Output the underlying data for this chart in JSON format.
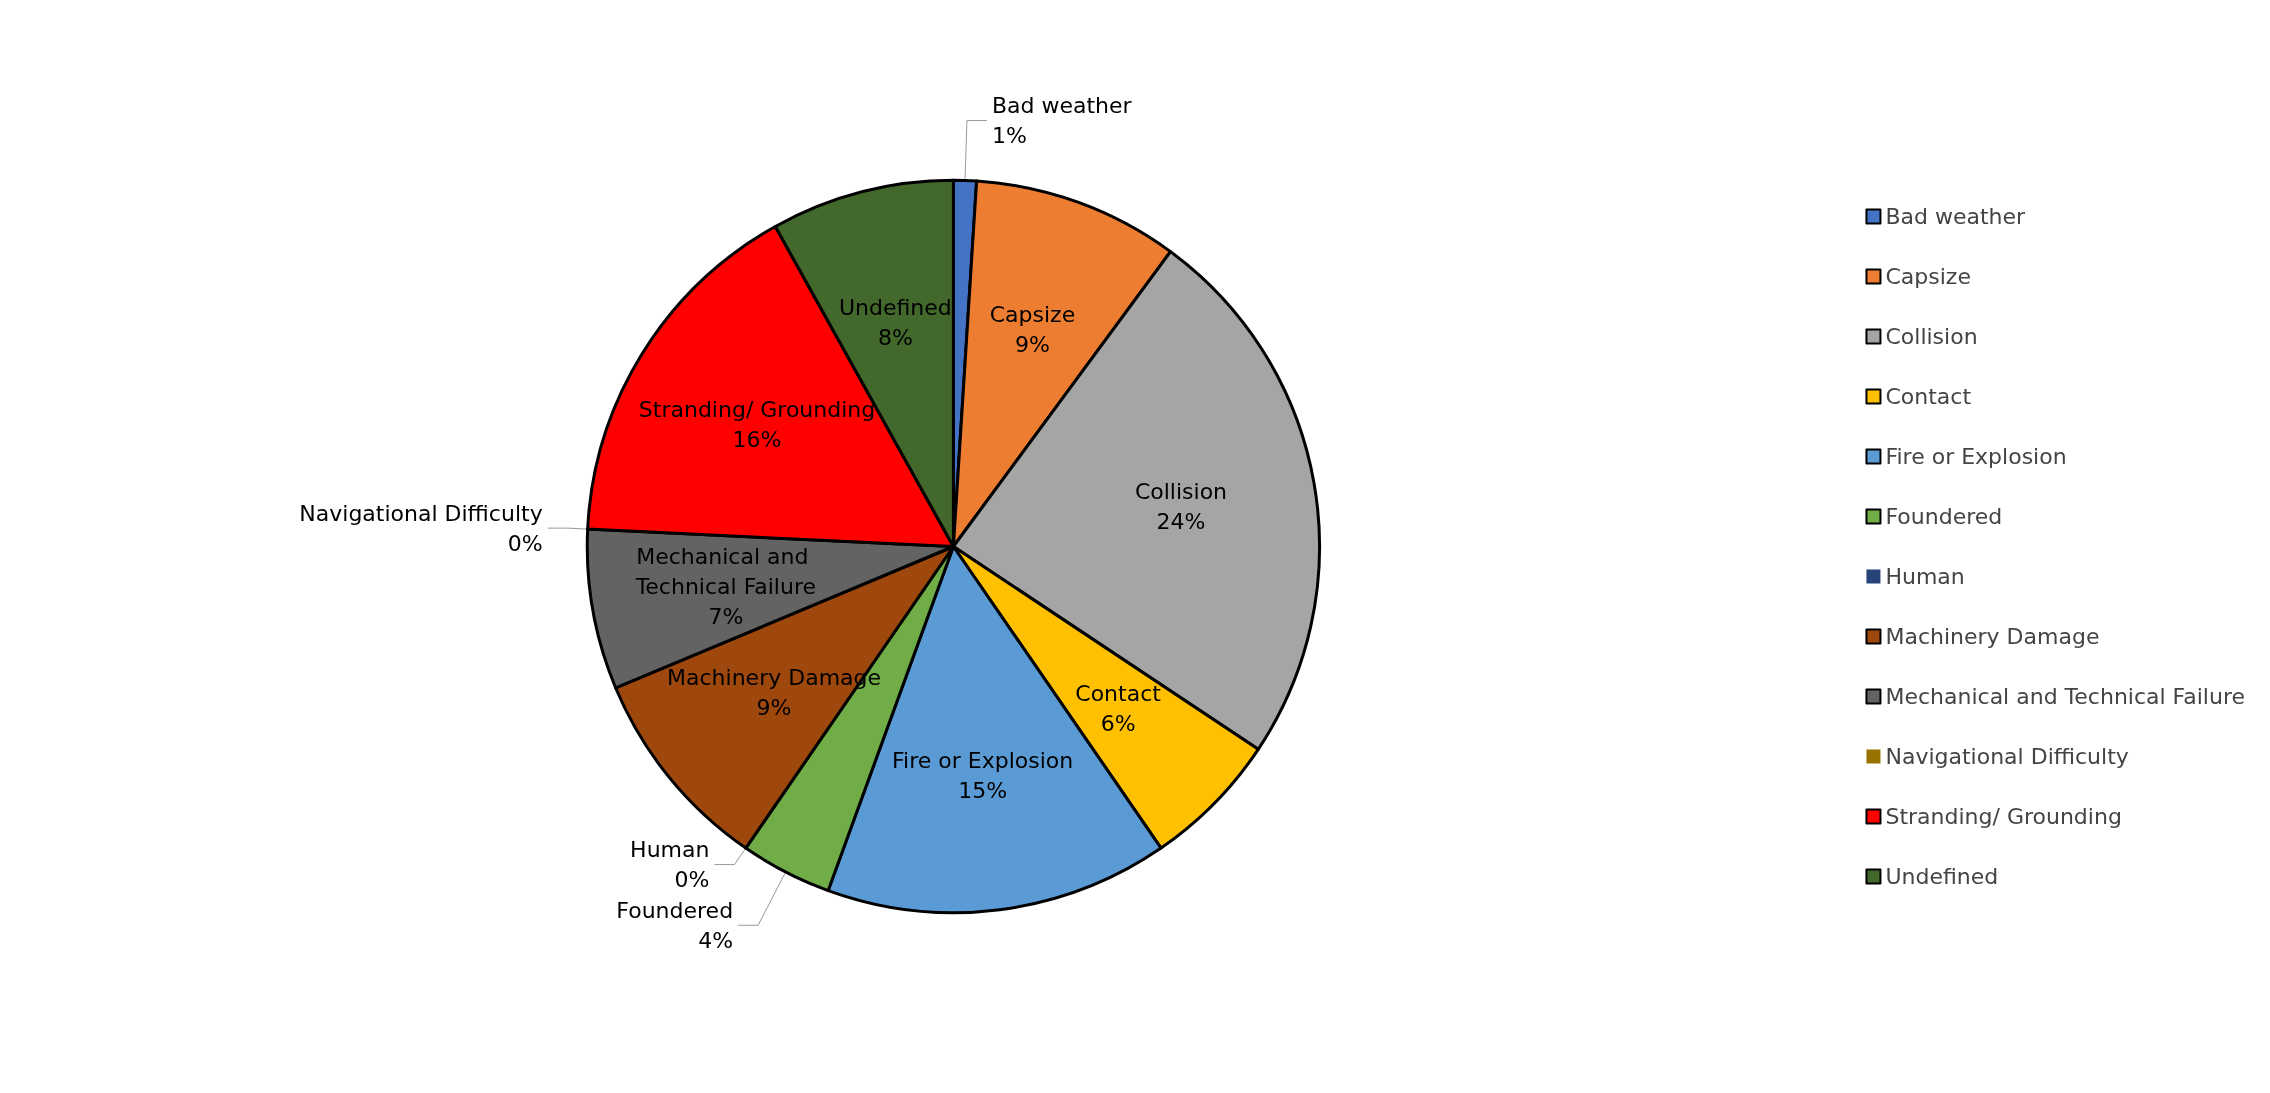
{
  "chart_data": {
    "type": "pie",
    "legend": "right",
    "categories": [
      "Bad weather",
      "Capsize",
      "Collision",
      "Contact",
      "Fire or Explosion",
      "Foundered",
      "Human",
      "Machinery Damage",
      "Mechanical and Technical Failure",
      "Navigational Difficulty",
      "Stranding/ Grounding",
      "Undefined"
    ],
    "values": [
      1,
      9,
      24,
      6,
      15,
      4,
      0,
      9,
      7,
      0,
      16,
      8
    ],
    "value_labels": [
      "1%",
      "9%",
      "24%",
      "6%",
      "15%",
      "4%",
      "0%",
      "9%",
      "7%",
      "0%",
      "16%",
      "8%"
    ],
    "colors": [
      "#4472c4",
      "#ed7d31",
      "#a5a5a5",
      "#ffc000",
      "#5b9bd5",
      "#70ad47",
      "#264478",
      "#9e480e",
      "#636363",
      "#997300",
      "#ff0000",
      "#43682b"
    ]
  }
}
